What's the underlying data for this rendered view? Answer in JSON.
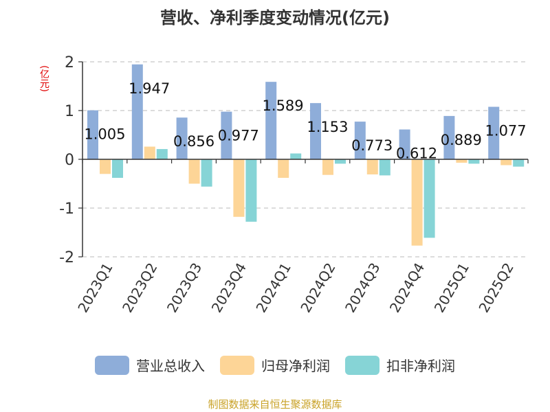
{
  "chart_data": {
    "type": "bar",
    "title": "营收、净利季度变动情况(亿元)",
    "unit": "(亿元)",
    "categories": [
      "2023Q1",
      "2023Q2",
      "2023Q3",
      "2023Q4",
      "2024Q1",
      "2024Q2",
      "2024Q3",
      "2024Q4",
      "2025Q1",
      "2025Q2"
    ],
    "series": [
      {
        "name": "营业总收入",
        "color": "#8eadd9",
        "values": [
          1.005,
          1.947,
          0.856,
          0.977,
          1.589,
          1.153,
          0.773,
          0.612,
          0.889,
          1.077
        ]
      },
      {
        "name": "归母净利润",
        "color": "#fdd597",
        "values": [
          -0.3,
          0.26,
          -0.5,
          -1.18,
          -0.38,
          -0.32,
          -0.31,
          -1.77,
          -0.07,
          -0.12
        ]
      },
      {
        "name": "扣非净利润",
        "color": "#86d4d6",
        "values": [
          -0.38,
          0.21,
          -0.56,
          -1.28,
          0.12,
          -0.09,
          -0.33,
          -1.61,
          -0.09,
          -0.15
        ]
      }
    ],
    "data_labels": [
      "1.005",
      "1.947",
      "0.856",
      "0.977",
      "1.589",
      "1.153",
      "0.773",
      "0.612",
      "0.889",
      "1.077"
    ],
    "ylim": [
      -2,
      2
    ],
    "yticks": [
      2,
      1,
      0,
      -1,
      -2
    ],
    "ytick_labels": [
      "2",
      "1",
      "0",
      "-1",
      "-2"
    ],
    "grid": true,
    "legend": "bottom"
  },
  "source": "制图数据来自恒生聚源数据库"
}
